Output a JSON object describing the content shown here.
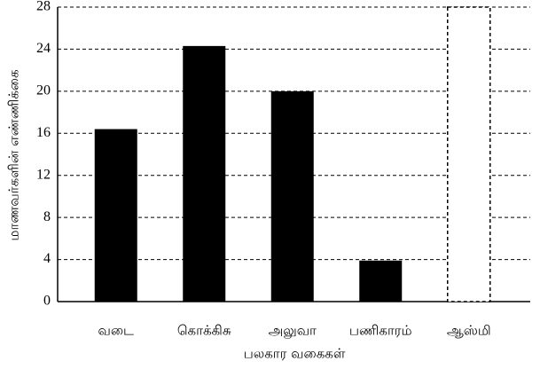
{
  "chart_data": {
    "type": "bar",
    "categories": [
      "வடை",
      "கொக்கிசு",
      "அலுவா",
      "பணிகாரம்",
      "ஆஸ்மி"
    ],
    "values": [
      16.4,
      24.3,
      20,
      3.9,
      28
    ],
    "styles": [
      "solid",
      "solid",
      "solid",
      "solid",
      "dashed"
    ],
    "color": "#000000",
    "x_label": "பலகார வகைகள்",
    "y_label": "மாணவர்களின் எண்ணிக்கை",
    "ylim": [
      0,
      28
    ],
    "yticks": [
      0,
      4,
      8,
      12,
      16,
      20,
      24,
      28
    ],
    "grid": true
  }
}
